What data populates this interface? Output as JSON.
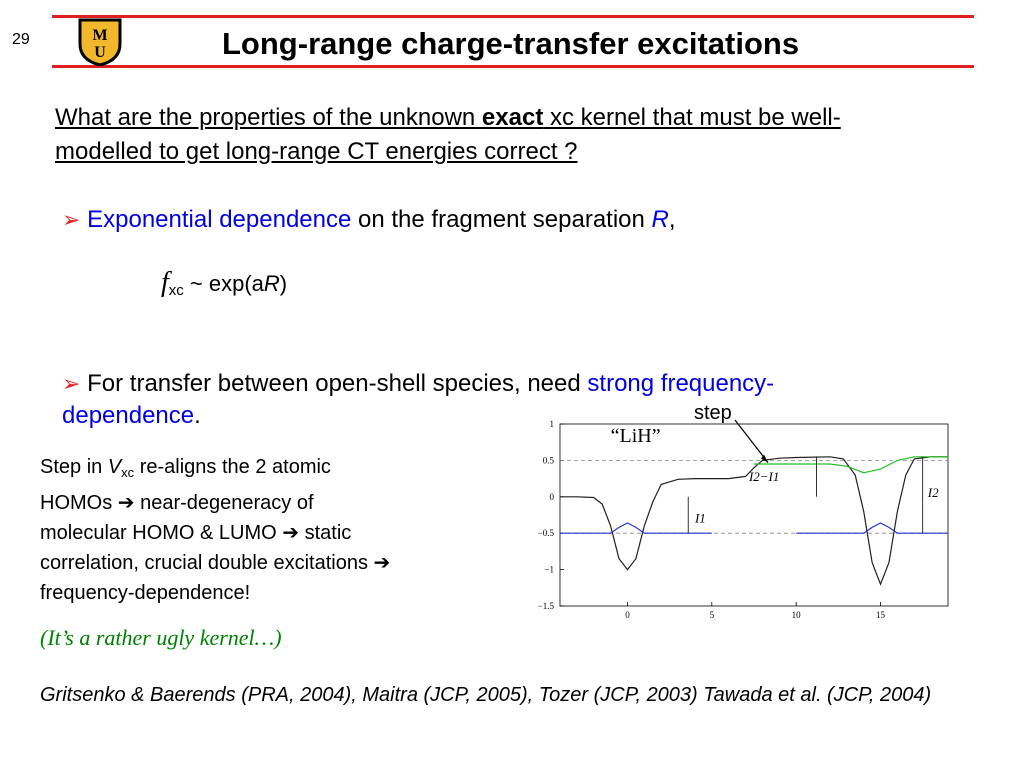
{
  "slide_number": "29",
  "title": "Long-range charge-transfer excitations",
  "logo_text": "MU",
  "colors": {
    "rule": "#e02020",
    "blue": "#0000e0",
    "green": "#008000",
    "logo_gold": "#f1b82d"
  },
  "question": {
    "before": "What are the properties of the unknown ",
    "emphasis": "exact",
    "after": " xc kernel that must be well-modelled to get long-range CT energies correct ?"
  },
  "bullet1": {
    "highlight": "Exponential dependence",
    "rest": " on the fragment separation ",
    "var": "R",
    "end": ","
  },
  "formula": {
    "f": "f",
    "sub": "xc",
    "mid": " ~ exp(a",
    "var": "R",
    "close": ")"
  },
  "bullet2": {
    "before": "For transfer between open-shell species, need ",
    "highlight_line1": "strong frequency-",
    "highlight_line2": "dependence",
    "end": "."
  },
  "left_text": {
    "line1_a": "Step  in ",
    "line1_var": "V",
    "line1_sub": "xc",
    "line1_b": " re-aligns the 2 atomic",
    "line2": "HOMOs ➔ near-degeneracy of",
    "line3": "molecular HOMO & LUMO ➔ static",
    "line4": "correlation, crucial double excitations ➔",
    "line5": "frequency-dependence!"
  },
  "ugly_note": "(It’s a rather ugly kernel…)",
  "references": "Gritsenko & Baerends (PRA, 2004), Maitra (JCP, 2005), Tozer (JCP, 2003) Tawada et al. (JCP, 2004)",
  "step_label": "step",
  "chart_data": {
    "type": "line",
    "title": "“LiH”",
    "xlabel": "",
    "ylabel": "",
    "xlim": [
      -4,
      19
    ],
    "ylim": [
      -1.5,
      1
    ],
    "xticks": [
      "0",
      "5",
      "10",
      "15"
    ],
    "yticks": [
      "1",
      "0.5",
      "0",
      "−0.5",
      "−1",
      "−1.5"
    ],
    "annotations": [
      "I1",
      "I2−I1",
      "I2"
    ],
    "series": [
      {
        "color": "#202020",
        "points": [
          [
            -4,
            0
          ],
          [
            -3,
            0
          ],
          [
            -2,
            -0.01
          ],
          [
            -1.5,
            -0.1
          ],
          [
            -1,
            -0.4
          ],
          [
            -0.5,
            -0.85
          ],
          [
            0,
            -1.0
          ],
          [
            0.5,
            -0.85
          ],
          [
            1,
            -0.4
          ],
          [
            1.5,
            -0.07
          ],
          [
            2,
            0.17
          ],
          [
            3,
            0.24
          ],
          [
            4,
            0.25
          ],
          [
            6,
            0.25
          ],
          [
            7,
            0.28
          ],
          [
            7.5,
            0.4
          ],
          [
            8,
            0.5
          ],
          [
            9,
            0.53
          ],
          [
            10,
            0.54
          ],
          [
            12,
            0.55
          ],
          [
            12.8,
            0.52
          ],
          [
            13.5,
            0.3
          ],
          [
            14,
            -0.2
          ],
          [
            14.5,
            -0.9
          ],
          [
            15,
            -1.2
          ],
          [
            15.5,
            -0.9
          ],
          [
            16,
            -0.2
          ],
          [
            16.5,
            0.3
          ],
          [
            17,
            0.52
          ],
          [
            18,
            0.55
          ],
          [
            19,
            0.55
          ]
        ]
      },
      {
        "color": "#2030d0",
        "points": [
          [
            -4,
            -0.5
          ],
          [
            -1,
            -0.5
          ],
          [
            -0.5,
            -0.42
          ],
          [
            0,
            -0.36
          ],
          [
            0.5,
            -0.42
          ],
          [
            1,
            -0.5
          ],
          [
            5,
            -0.5
          ]
        ]
      },
      {
        "color": "#2030d0",
        "points": [
          [
            10,
            -0.5
          ],
          [
            14,
            -0.5
          ],
          [
            14.5,
            -0.42
          ],
          [
            15,
            -0.36
          ],
          [
            15.5,
            -0.42
          ],
          [
            16,
            -0.5
          ],
          [
            19,
            -0.5
          ]
        ]
      },
      {
        "color": "#20c020",
        "points": [
          [
            7.5,
            0.45
          ],
          [
            10,
            0.45
          ],
          [
            12,
            0.45
          ],
          [
            13,
            0.42
          ],
          [
            14,
            0.33
          ],
          [
            15,
            0.38
          ],
          [
            16,
            0.5
          ],
          [
            17,
            0.55
          ],
          [
            19,
            0.55
          ]
        ]
      }
    ],
    "dashed_levels": [
      0.5,
      -0.5
    ]
  }
}
